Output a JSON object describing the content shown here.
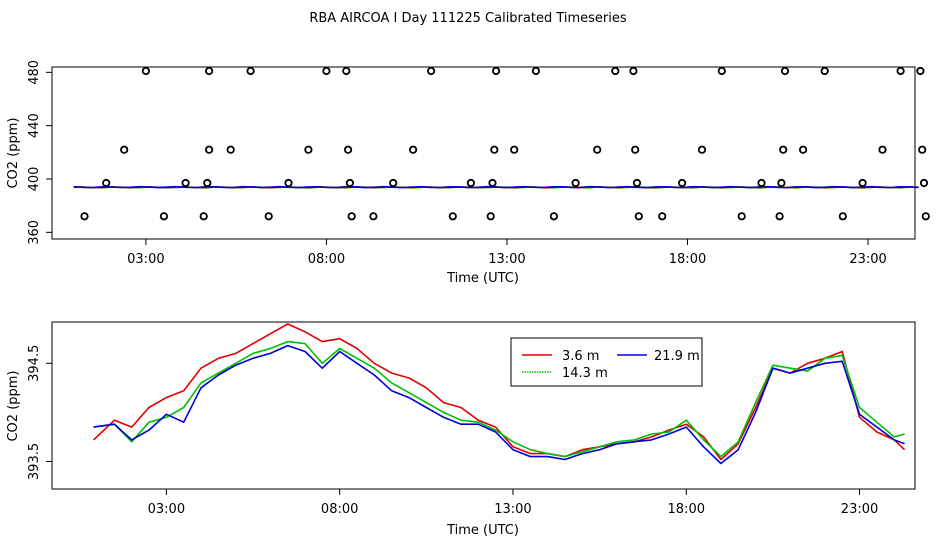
{
  "title": "RBA AIRCOA I  Day 111225  Calibrated Timeseries",
  "colors": {
    "red": "#e00000",
    "green": "#00c000",
    "blue": "#0000dd",
    "black": "#000000"
  },
  "chart_data": [
    {
      "type": "scatter",
      "title": "RBA AIRCOA I  Day 111225  Calibrated Timeseries",
      "xlabel": "Time (UTC)",
      "ylabel": "CO2 (ppm)",
      "xlim": [
        0.4,
        24.3
      ],
      "ylim": [
        355,
        484
      ],
      "xticks": [
        3,
        8,
        13,
        18,
        23
      ],
      "xtick_labels": [
        "03:00",
        "08:00",
        "13:00",
        "18:00",
        "23:00"
      ],
      "yticks": [
        360,
        400,
        440,
        480
      ],
      "ytick_labels": [
        "360",
        "400",
        "440",
        "480"
      ],
      "points": [
        {
          "x": 1.3,
          "y": 372
        },
        {
          "x": 1.9,
          "y": 397
        },
        {
          "x": 2.4,
          "y": 422
        },
        {
          "x": 3.0,
          "y": 481
        },
        {
          "x": 3.5,
          "y": 372
        },
        {
          "x": 4.1,
          "y": 397
        },
        {
          "x": 4.6,
          "y": 372
        },
        {
          "x": 4.7,
          "y": 397
        },
        {
          "x": 4.75,
          "y": 422
        },
        {
          "x": 4.75,
          "y": 481
        },
        {
          "x": 5.35,
          "y": 422
        },
        {
          "x": 5.9,
          "y": 481
        },
        {
          "x": 6.4,
          "y": 372
        },
        {
          "x": 6.95,
          "y": 397
        },
        {
          "x": 7.5,
          "y": 422
        },
        {
          "x": 8.0,
          "y": 481
        },
        {
          "x": 8.55,
          "y": 481
        },
        {
          "x": 8.6,
          "y": 422
        },
        {
          "x": 8.65,
          "y": 397
        },
        {
          "x": 8.7,
          "y": 372
        },
        {
          "x": 9.3,
          "y": 372
        },
        {
          "x": 9.85,
          "y": 397
        },
        {
          "x": 10.4,
          "y": 422
        },
        {
          "x": 10.9,
          "y": 481
        },
        {
          "x": 11.5,
          "y": 372
        },
        {
          "x": 12.0,
          "y": 397
        },
        {
          "x": 12.55,
          "y": 372
        },
        {
          "x": 12.6,
          "y": 397
        },
        {
          "x": 12.65,
          "y": 422
        },
        {
          "x": 12.7,
          "y": 481
        },
        {
          "x": 13.2,
          "y": 422
        },
        {
          "x": 13.8,
          "y": 481
        },
        {
          "x": 14.3,
          "y": 372
        },
        {
          "x": 14.9,
          "y": 397
        },
        {
          "x": 15.5,
          "y": 422
        },
        {
          "x": 16.0,
          "y": 481
        },
        {
          "x": 16.5,
          "y": 481
        },
        {
          "x": 16.55,
          "y": 422
        },
        {
          "x": 16.6,
          "y": 397
        },
        {
          "x": 16.65,
          "y": 372
        },
        {
          "x": 17.3,
          "y": 372
        },
        {
          "x": 17.85,
          "y": 397
        },
        {
          "x": 18.4,
          "y": 422
        },
        {
          "x": 18.95,
          "y": 481
        },
        {
          "x": 19.5,
          "y": 372
        },
        {
          "x": 20.05,
          "y": 397
        },
        {
          "x": 20.55,
          "y": 372
        },
        {
          "x": 20.6,
          "y": 397
        },
        {
          "x": 20.65,
          "y": 422
        },
        {
          "x": 20.7,
          "y": 481
        },
        {
          "x": 21.2,
          "y": 422
        },
        {
          "x": 21.8,
          "y": 481
        },
        {
          "x": 22.3,
          "y": 372
        },
        {
          "x": 22.85,
          "y": 397
        },
        {
          "x": 23.4,
          "y": 422
        },
        {
          "x": 23.9,
          "y": 481
        },
        {
          "x": 24.45,
          "y": 481
        },
        {
          "x": 24.5,
          "y": 422
        },
        {
          "x": 24.55,
          "y": 397
        },
        {
          "x": 24.6,
          "y": 372
        }
      ],
      "lines_level": 393.8
    },
    {
      "type": "line",
      "xlabel": "Time (UTC)",
      "ylabel": "CO2 (ppm)",
      "xlim": [
        -0.3,
        24.6
      ],
      "ylim": [
        393.22,
        394.92
      ],
      "xticks": [
        3,
        8,
        13,
        18,
        23
      ],
      "xtick_labels": [
        "03:00",
        "08:00",
        "13:00",
        "18:00",
        "23:00"
      ],
      "yticks": [
        393.5,
        394.5
      ],
      "ytick_labels": [
        "393.5",
        "394.5"
      ],
      "legend": {
        "position": "top-center"
      },
      "series": [
        {
          "name": "3.6 m",
          "color": "#e00000",
          "x": [
            0.9,
            1.5,
            2.0,
            2.5,
            3.0,
            3.5,
            4.0,
            4.5,
            5.0,
            5.5,
            6.0,
            6.5,
            7.0,
            7.5,
            8.0,
            8.5,
            9.0,
            9.5,
            10.0,
            10.5,
            11.0,
            11.5,
            12.0,
            12.5,
            13.0,
            13.5,
            14.0,
            14.5,
            15.0,
            15.5,
            16.0,
            16.5,
            17.0,
            17.5,
            18.0,
            18.5,
            19.0,
            19.5,
            20.0,
            20.5,
            21.0,
            21.5,
            22.0,
            22.5,
            23.0,
            23.5,
            24.0,
            24.3
          ],
          "y": [
            393.72,
            393.92,
            393.85,
            394.05,
            394.15,
            394.22,
            394.45,
            394.55,
            394.6,
            394.7,
            394.8,
            394.9,
            394.82,
            394.72,
            394.75,
            394.65,
            394.5,
            394.4,
            394.35,
            394.25,
            394.1,
            394.05,
            393.92,
            393.85,
            393.65,
            393.58,
            393.58,
            393.55,
            393.62,
            393.65,
            393.68,
            393.7,
            393.75,
            393.82,
            393.88,
            393.75,
            393.52,
            393.68,
            394.05,
            394.45,
            394.4,
            394.5,
            394.55,
            394.62,
            393.95,
            393.8,
            393.72,
            393.62
          ]
        },
        {
          "name": "14.3 m",
          "color": "#00c000",
          "x": [
            0.9,
            1.5,
            2.0,
            2.5,
            3.0,
            3.5,
            4.0,
            4.5,
            5.0,
            5.5,
            6.0,
            6.5,
            7.0,
            7.5,
            8.0,
            8.5,
            9.0,
            9.5,
            10.0,
            10.5,
            11.0,
            11.5,
            12.0,
            12.5,
            13.0,
            13.5,
            14.0,
            14.5,
            15.0,
            15.5,
            16.0,
            16.5,
            17.0,
            17.5,
            18.0,
            18.5,
            19.0,
            19.5,
            20.0,
            20.5,
            21.0,
            21.5,
            22.0,
            22.5,
            23.0,
            23.5,
            24.0,
            24.3
          ],
          "y": [
            393.85,
            393.88,
            393.7,
            393.9,
            393.95,
            394.05,
            394.3,
            394.4,
            394.5,
            394.6,
            394.65,
            394.72,
            394.7,
            394.5,
            394.65,
            394.55,
            394.45,
            394.3,
            394.2,
            394.1,
            394.0,
            393.92,
            393.9,
            393.82,
            393.7,
            393.62,
            393.58,
            393.55,
            393.6,
            393.65,
            393.7,
            393.72,
            393.78,
            393.8,
            393.92,
            393.72,
            393.55,
            393.7,
            394.1,
            394.48,
            394.45,
            394.42,
            394.55,
            394.58,
            394.05,
            393.9,
            393.75,
            393.78
          ]
        },
        {
          "name": "21.9 m",
          "color": "#0000dd",
          "x": [
            0.9,
            1.5,
            2.0,
            2.5,
            3.0,
            3.5,
            4.0,
            4.5,
            5.0,
            5.5,
            6.0,
            6.5,
            7.0,
            7.5,
            8.0,
            8.5,
            9.0,
            9.5,
            10.0,
            10.5,
            11.0,
            11.5,
            12.0,
            12.5,
            13.0,
            13.5,
            14.0,
            14.5,
            15.0,
            15.5,
            16.0,
            16.5,
            17.0,
            17.5,
            18.0,
            18.5,
            19.0,
            19.5,
            20.0,
            20.5,
            21.0,
            21.5,
            22.0,
            22.5,
            23.0,
            23.5,
            24.0,
            24.3
          ],
          "y": [
            393.85,
            393.88,
            393.72,
            393.82,
            393.98,
            393.9,
            394.25,
            394.38,
            394.48,
            394.55,
            394.6,
            394.68,
            394.62,
            394.45,
            394.62,
            394.5,
            394.38,
            394.22,
            394.15,
            394.05,
            393.95,
            393.88,
            393.88,
            393.8,
            393.62,
            393.55,
            393.55,
            393.52,
            393.58,
            393.62,
            393.68,
            393.7,
            393.72,
            393.78,
            393.85,
            393.65,
            393.48,
            393.62,
            394.0,
            394.45,
            394.4,
            394.45,
            394.5,
            394.52,
            393.98,
            393.85,
            393.72,
            393.68
          ]
        }
      ]
    }
  ]
}
